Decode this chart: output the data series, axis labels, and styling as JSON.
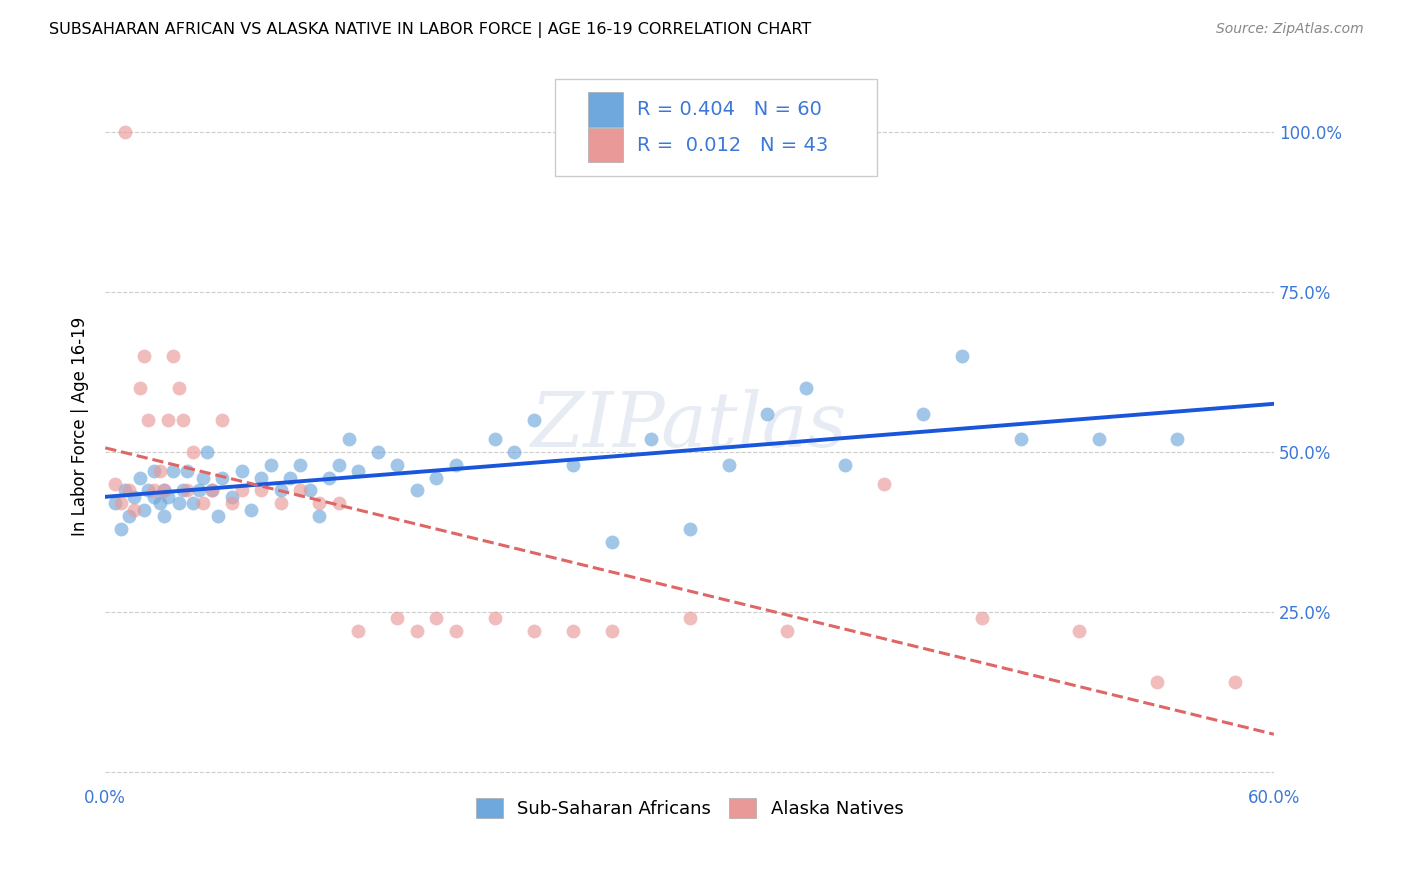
{
  "title": "SUBSAHARAN AFRICAN VS ALASKA NATIVE IN LABOR FORCE | AGE 16-19 CORRELATION CHART",
  "source": "Source: ZipAtlas.com",
  "ylabel": "In Labor Force | Age 16-19",
  "yticks": [
    0.0,
    0.25,
    0.5,
    0.75,
    1.0
  ],
  "xlim": [
    0.0,
    0.6
  ],
  "ylim": [
    -0.02,
    1.1
  ],
  "blue_color": "#6fa8dc",
  "pink_color": "#ea9999",
  "blue_line_color": "#1a56db",
  "pink_line_color": "#e06666",
  "R_blue": 0.404,
  "N_blue": 60,
  "R_pink": 0.012,
  "N_pink": 43,
  "legend_label_blue": "Sub-Saharan Africans",
  "legend_label_pink": "Alaska Natives",
  "watermark": "ZIPatlas",
  "blue_x": [
    0.005,
    0.008,
    0.01,
    0.012,
    0.015,
    0.018,
    0.02,
    0.022,
    0.025,
    0.025,
    0.028,
    0.03,
    0.03,
    0.032,
    0.035,
    0.038,
    0.04,
    0.042,
    0.045,
    0.048,
    0.05,
    0.052,
    0.055,
    0.058,
    0.06,
    0.065,
    0.07,
    0.075,
    0.08,
    0.085,
    0.09,
    0.095,
    0.1,
    0.105,
    0.11,
    0.115,
    0.12,
    0.125,
    0.13,
    0.14,
    0.15,
    0.16,
    0.17,
    0.18,
    0.2,
    0.21,
    0.22,
    0.24,
    0.26,
    0.28,
    0.3,
    0.32,
    0.34,
    0.36,
    0.38,
    0.42,
    0.44,
    0.47,
    0.51,
    0.55
  ],
  "blue_y": [
    0.42,
    0.38,
    0.44,
    0.4,
    0.43,
    0.46,
    0.41,
    0.44,
    0.47,
    0.43,
    0.42,
    0.44,
    0.4,
    0.43,
    0.47,
    0.42,
    0.44,
    0.47,
    0.42,
    0.44,
    0.46,
    0.5,
    0.44,
    0.4,
    0.46,
    0.43,
    0.47,
    0.41,
    0.46,
    0.48,
    0.44,
    0.46,
    0.48,
    0.44,
    0.4,
    0.46,
    0.48,
    0.52,
    0.47,
    0.5,
    0.48,
    0.44,
    0.46,
    0.48,
    0.52,
    0.5,
    0.55,
    0.48,
    0.36,
    0.52,
    0.38,
    0.48,
    0.56,
    0.6,
    0.48,
    0.56,
    0.65,
    0.52,
    0.52,
    0.52
  ],
  "pink_x": [
    0.005,
    0.008,
    0.01,
    0.012,
    0.015,
    0.018,
    0.02,
    0.022,
    0.025,
    0.028,
    0.03,
    0.032,
    0.035,
    0.038,
    0.04,
    0.042,
    0.045,
    0.05,
    0.055,
    0.06,
    0.065,
    0.07,
    0.08,
    0.09,
    0.1,
    0.11,
    0.12,
    0.13,
    0.15,
    0.16,
    0.17,
    0.18,
    0.2,
    0.22,
    0.24,
    0.26,
    0.3,
    0.35,
    0.4,
    0.45,
    0.5,
    0.54,
    0.58
  ],
  "pink_y": [
    0.45,
    0.42,
    1.0,
    0.44,
    0.41,
    0.6,
    0.65,
    0.55,
    0.44,
    0.47,
    0.44,
    0.55,
    0.65,
    0.6,
    0.55,
    0.44,
    0.5,
    0.42,
    0.44,
    0.55,
    0.42,
    0.44,
    0.44,
    0.42,
    0.44,
    0.42,
    0.42,
    0.22,
    0.24,
    0.22,
    0.24,
    0.22,
    0.24,
    0.22,
    0.22,
    0.22,
    0.24,
    0.22,
    0.45,
    0.24,
    0.22,
    0.14,
    0.14
  ]
}
